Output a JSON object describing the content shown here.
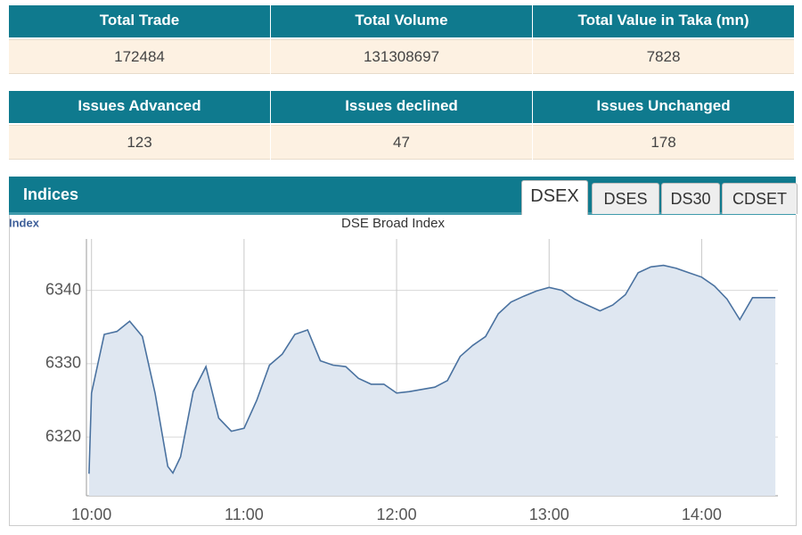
{
  "tables": [
    {
      "headers": [
        "Total Trade",
        "Total Volume",
        "Total Value in Taka (mn)"
      ],
      "values": [
        172484,
        131308697,
        7828
      ]
    },
    {
      "headers": [
        "Issues Advanced",
        "Issues declined",
        "Issues Unchanged"
      ],
      "values": [
        123,
        47,
        178
      ]
    }
  ],
  "indices": {
    "title": "Indices",
    "tabs": [
      "DSEX",
      "DSES",
      "DS30",
      "CDSET"
    ],
    "active_tab": 0
  },
  "chart_data": {
    "type": "line",
    "title": "DSE Broad Index",
    "y_label": "Index",
    "x": [
      599,
      600,
      605,
      610,
      615,
      620,
      625,
      630,
      632,
      635,
      640,
      645,
      650,
      655,
      660,
      665,
      670,
      675,
      680,
      685,
      690,
      695,
      700,
      705,
      710,
      715,
      720,
      725,
      730,
      735,
      740,
      745,
      750,
      755,
      760,
      765,
      770,
      775,
      780,
      785,
      790,
      795,
      800,
      805,
      810,
      815,
      820,
      825,
      830,
      835,
      840,
      845,
      850,
      855,
      860,
      865,
      869
    ],
    "values": [
      6315,
      6326,
      6334,
      6334.4,
      6335.8,
      6333.7,
      6326,
      6316,
      6315.1,
      6317.3,
      6326.2,
      6329.6,
      6322.6,
      6320.8,
      6321.2,
      6325,
      6329.8,
      6331.3,
      6334,
      6334.6,
      6330.4,
      6329.8,
      6329.6,
      6328,
      6327.2,
      6327.2,
      6326,
      6326.2,
      6326.5,
      6326.8,
      6327.7,
      6331,
      6332.5,
      6333.7,
      6336.8,
      6338.4,
      6339.2,
      6339.9,
      6340.4,
      6340,
      6338.8,
      6338,
      6337.2,
      6338,
      6339.4,
      6342.4,
      6343.2,
      6343.4,
      6343,
      6342.4,
      6341.8,
      6340.6,
      6338.8,
      6336,
      6339,
      6339,
      6339
    ],
    "color": "#4a72a0",
    "fill": "#dfe7f1",
    "xlim": [
      598,
      870
    ],
    "xticks": [
      {
        "value": 600,
        "label": "10:00"
      },
      {
        "value": 660,
        "label": "11:00"
      },
      {
        "value": 720,
        "label": "12:00"
      },
      {
        "value": 780,
        "label": "13:00"
      },
      {
        "value": 840,
        "label": "14:00"
      }
    ],
    "ylim": [
      6312,
      6347
    ],
    "yticks": [
      6320,
      6330,
      6340
    ],
    "grid": true
  }
}
